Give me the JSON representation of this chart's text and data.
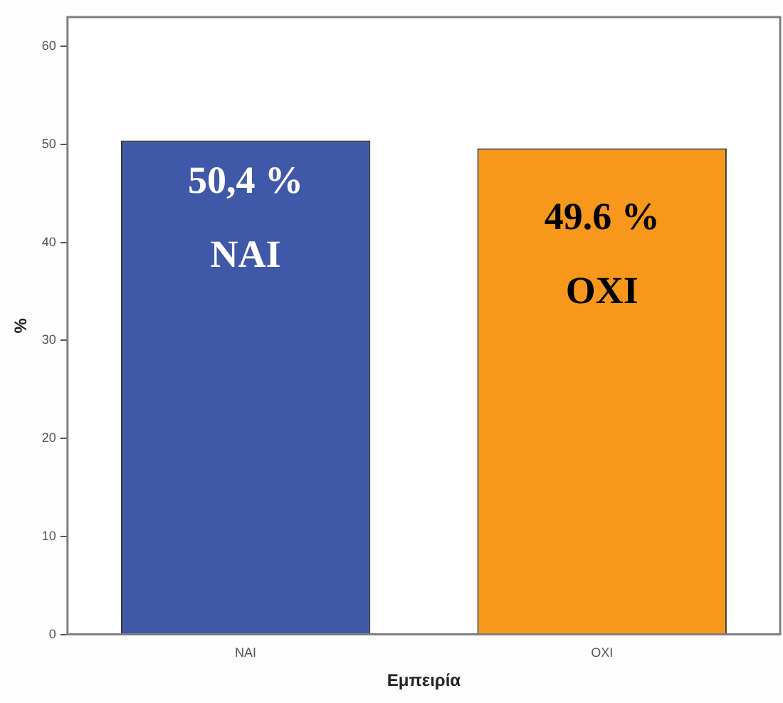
{
  "chart_data": {
    "type": "bar",
    "xlabel": "Εμπειρία",
    "ylabel": "%",
    "categories": [
      "NAI",
      "OXI"
    ],
    "values": [
      50.4,
      49.6
    ],
    "colors": [
      "#3f58a8",
      "#f7981d"
    ],
    "value_labels": [
      "50,4 %",
      "49.6 %"
    ],
    "annotations": [
      "NAI",
      "OXI"
    ],
    "ylim": [
      0,
      63
    ],
    "yticks": [
      0,
      10,
      20,
      30,
      40,
      50,
      60
    ],
    "grid": false,
    "legend": false
  }
}
